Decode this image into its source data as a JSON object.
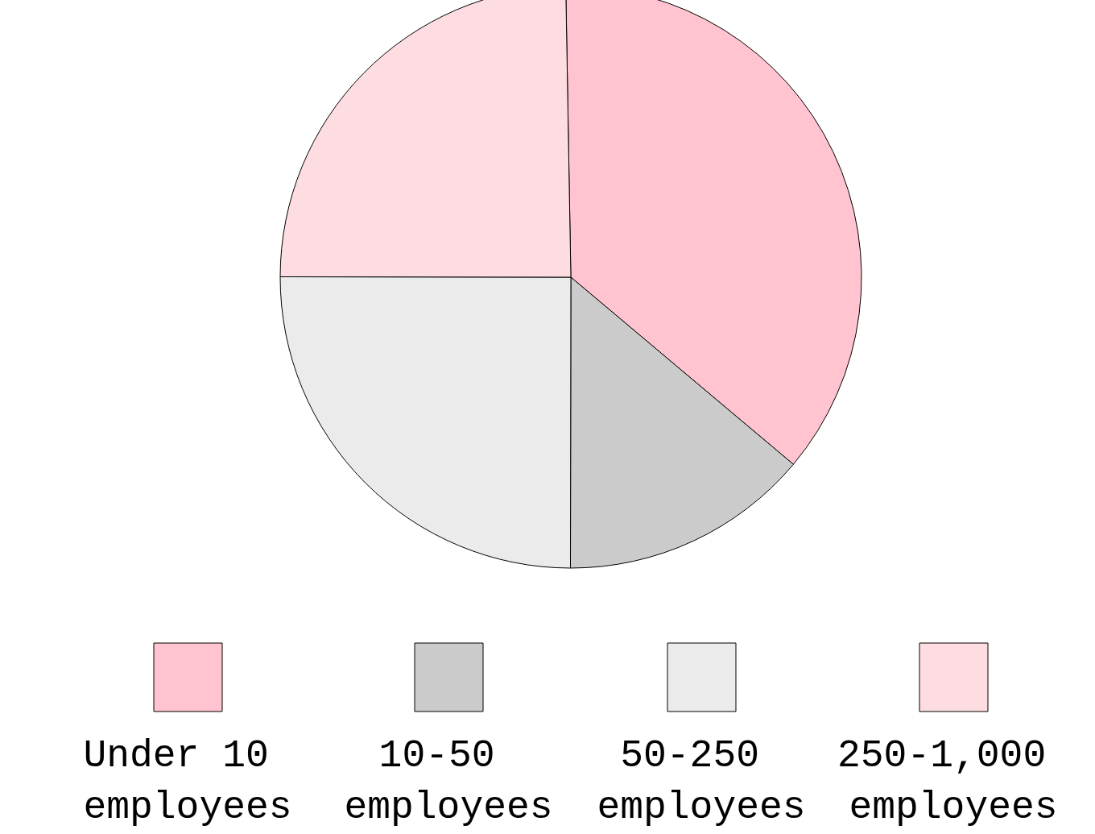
{
  "chart_data": {
    "type": "pie",
    "categories": [
      "Under 10 employees",
      "10-50 employees",
      "50-250 employees",
      "250-1,000 employees"
    ],
    "values": [
      36.4,
      13.9,
      25,
      24.7
    ],
    "colors": [
      "#ffc4cf",
      "#cbcbcb",
      "#ebebeb",
      "#fddde1"
    ],
    "legend": "bottom"
  }
}
